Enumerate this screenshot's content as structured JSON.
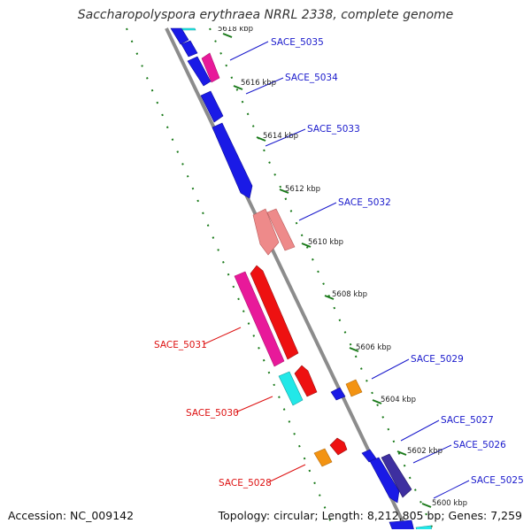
{
  "title": "Saccharopolyspora erythraea NRRL 2338, complete genome",
  "footer": {
    "accession": "Accession: NC_009142",
    "topology": "Topology: circular; Length: 8,212,805 bp; Genes: 7,259"
  },
  "colors": {
    "backbone": "#8c8c8c",
    "ticks": "#1a7a1a",
    "forward_label": "#1a1acc",
    "reverse_label": "#dd1111",
    "cds_blue": "#1a1ae6",
    "cds_cyan": "#22e8e8",
    "cds_magenta": "#e8199a",
    "cds_red": "#ee1111",
    "cds_pink": "#ee8a8a",
    "cds_orange": "#f39312",
    "cds_navy": "#3e2fa0"
  },
  "ticks": [
    {
      "id": "5618",
      "label": "5618 kbp"
    },
    {
      "id": "5616",
      "label": "5616 kbp"
    },
    {
      "id": "5614",
      "label": "5614 kbp"
    },
    {
      "id": "5612",
      "label": "5612 kbp"
    },
    {
      "id": "5610",
      "label": "5610 kbp"
    },
    {
      "id": "5608",
      "label": "5608 kbp"
    },
    {
      "id": "5606",
      "label": "5606 kbp"
    },
    {
      "id": "5604",
      "label": "5604 kbp"
    },
    {
      "id": "5602",
      "label": "5602 kbp"
    },
    {
      "id": "5600",
      "label": "5600 kbp"
    }
  ],
  "genes": [
    {
      "id": "SACE_5035",
      "label": "SACE_5035",
      "strand": "forward"
    },
    {
      "id": "SACE_5034",
      "label": "SACE_5034",
      "strand": "forward"
    },
    {
      "id": "SACE_5033",
      "label": "SACE_5033",
      "strand": "forward"
    },
    {
      "id": "SACE_5032",
      "label": "SACE_5032",
      "strand": "forward"
    },
    {
      "id": "SACE_5031",
      "label": "SACE_5031",
      "strand": "reverse"
    },
    {
      "id": "SACE_5030",
      "label": "SACE_5030",
      "strand": "reverse"
    },
    {
      "id": "SACE_5029",
      "label": "SACE_5029",
      "strand": "forward"
    },
    {
      "id": "SACE_5028",
      "label": "SACE_5028",
      "strand": "reverse"
    },
    {
      "id": "SACE_5027",
      "label": "SACE_5027",
      "strand": "forward"
    },
    {
      "id": "SACE_5026",
      "label": "SACE_5026",
      "strand": "forward"
    },
    {
      "id": "SACE_5025",
      "label": "SACE_5025",
      "strand": "forward"
    }
  ]
}
